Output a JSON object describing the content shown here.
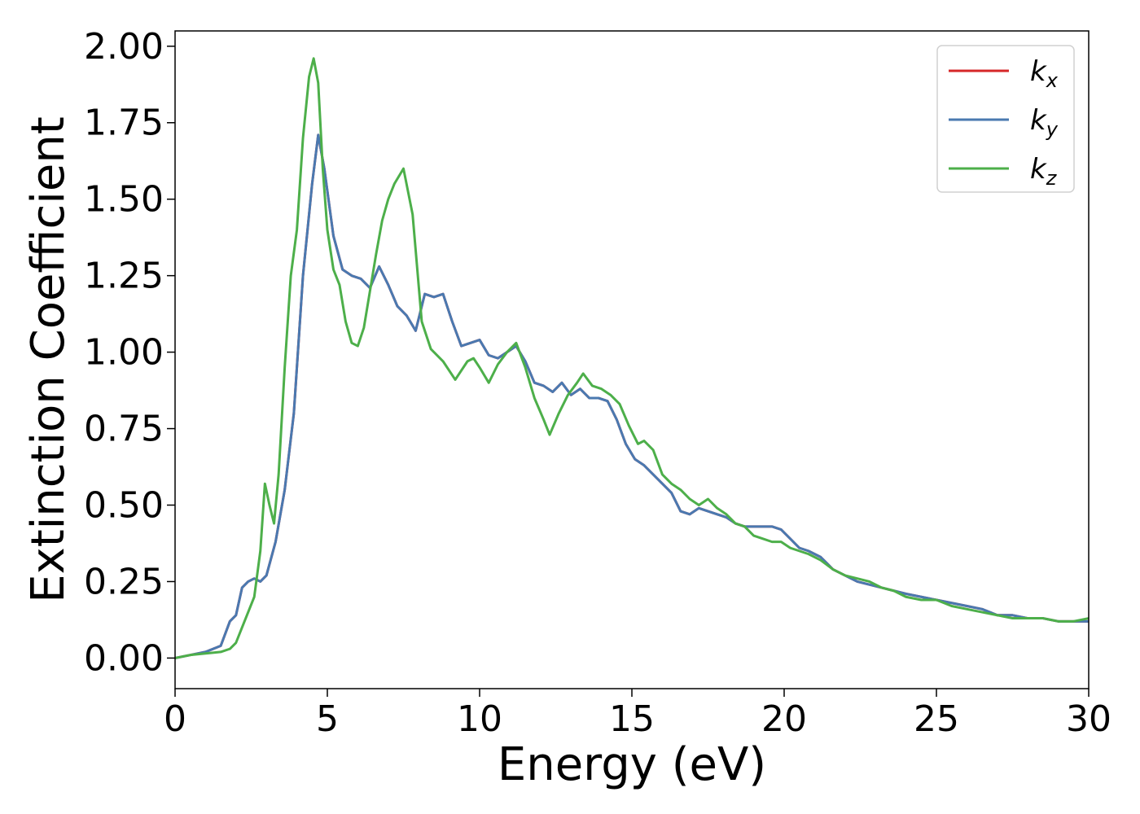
{
  "chart_data": {
    "type": "line",
    "xlabel": "Energy (eV)",
    "ylabel": "Extinction Coefficient",
    "xlim": [
      0,
      30
    ],
    "ylim": [
      -0.1,
      2.05
    ],
    "xticks": [
      0,
      5,
      10,
      15,
      20,
      25,
      30
    ],
    "yticks": [
      0.0,
      0.25,
      0.5,
      0.75,
      1.0,
      1.25,
      1.5,
      1.75,
      2.0
    ],
    "xtick_labels": [
      "0",
      "5",
      "10",
      "15",
      "20",
      "25",
      "30"
    ],
    "ytick_labels": [
      "0.00",
      "0.25",
      "0.50",
      "0.75",
      "1.00",
      "1.25",
      "1.50",
      "1.75",
      "2.00"
    ],
    "grid": false,
    "legend_position": "top-right",
    "series": [
      {
        "name": "k_x",
        "label_base": "k",
        "label_sub": "x",
        "color": "#d62728",
        "x": [
          0,
          0.5,
          1.0,
          1.5,
          1.8,
          2.0,
          2.2,
          2.4,
          2.6,
          2.8,
          3.0,
          3.3,
          3.6,
          3.9,
          4.2,
          4.5,
          4.7,
          4.9,
          5.2,
          5.5,
          5.8,
          6.1,
          6.4,
          6.7,
          7.0,
          7.3,
          7.6,
          7.9,
          8.2,
          8.5,
          8.8,
          9.1,
          9.4,
          9.7,
          10.0,
          10.3,
          10.6,
          10.9,
          11.2,
          11.5,
          11.8,
          12.1,
          12.4,
          12.7,
          13.0,
          13.3,
          13.6,
          13.9,
          14.2,
          14.5,
          14.8,
          15.1,
          15.4,
          15.7,
          16.0,
          16.3,
          16.6,
          16.9,
          17.2,
          17.5,
          17.8,
          18.1,
          18.4,
          18.7,
          19.0,
          19.3,
          19.6,
          19.9,
          20.2,
          20.5,
          20.8,
          21.2,
          21.6,
          22.0,
          22.4,
          22.8,
          23.2,
          23.6,
          24.0,
          24.5,
          25.0,
          25.5,
          26.0,
          26.5,
          27.0,
          27.5,
          28.0,
          28.5,
          29.0,
          29.5,
          30.0
        ],
        "y": [
          0.0,
          0.01,
          0.02,
          0.04,
          0.12,
          0.14,
          0.23,
          0.25,
          0.26,
          0.25,
          0.27,
          0.38,
          0.55,
          0.8,
          1.25,
          1.55,
          1.71,
          1.6,
          1.38,
          1.27,
          1.25,
          1.24,
          1.21,
          1.28,
          1.22,
          1.15,
          1.12,
          1.07,
          1.19,
          1.18,
          1.19,
          1.1,
          1.02,
          1.03,
          1.04,
          0.99,
          0.98,
          1.0,
          1.02,
          0.97,
          0.9,
          0.89,
          0.87,
          0.9,
          0.86,
          0.88,
          0.85,
          0.85,
          0.84,
          0.78,
          0.7,
          0.65,
          0.63,
          0.6,
          0.57,
          0.54,
          0.48,
          0.47,
          0.49,
          0.48,
          0.47,
          0.46,
          0.44,
          0.43,
          0.43,
          0.43,
          0.43,
          0.42,
          0.39,
          0.36,
          0.35,
          0.33,
          0.29,
          0.27,
          0.25,
          0.24,
          0.23,
          0.22,
          0.21,
          0.2,
          0.19,
          0.18,
          0.17,
          0.16,
          0.14,
          0.14,
          0.13,
          0.13,
          0.12,
          0.12,
          0.12
        ]
      },
      {
        "name": "k_y",
        "label_base": "k",
        "label_sub": "y",
        "color": "#4a79b0",
        "x": [
          0,
          0.5,
          1.0,
          1.5,
          1.8,
          2.0,
          2.2,
          2.4,
          2.6,
          2.8,
          3.0,
          3.3,
          3.6,
          3.9,
          4.2,
          4.5,
          4.7,
          4.9,
          5.2,
          5.5,
          5.8,
          6.1,
          6.4,
          6.7,
          7.0,
          7.3,
          7.6,
          7.9,
          8.2,
          8.5,
          8.8,
          9.1,
          9.4,
          9.7,
          10.0,
          10.3,
          10.6,
          10.9,
          11.2,
          11.5,
          11.8,
          12.1,
          12.4,
          12.7,
          13.0,
          13.3,
          13.6,
          13.9,
          14.2,
          14.5,
          14.8,
          15.1,
          15.4,
          15.7,
          16.0,
          16.3,
          16.6,
          16.9,
          17.2,
          17.5,
          17.8,
          18.1,
          18.4,
          18.7,
          19.0,
          19.3,
          19.6,
          19.9,
          20.2,
          20.5,
          20.8,
          21.2,
          21.6,
          22.0,
          22.4,
          22.8,
          23.2,
          23.6,
          24.0,
          24.5,
          25.0,
          25.5,
          26.0,
          26.5,
          27.0,
          27.5,
          28.0,
          28.5,
          29.0,
          29.5,
          30.0
        ],
        "y": [
          0.0,
          0.01,
          0.02,
          0.04,
          0.12,
          0.14,
          0.23,
          0.25,
          0.26,
          0.25,
          0.27,
          0.38,
          0.55,
          0.8,
          1.25,
          1.55,
          1.71,
          1.6,
          1.38,
          1.27,
          1.25,
          1.24,
          1.21,
          1.28,
          1.22,
          1.15,
          1.12,
          1.07,
          1.19,
          1.18,
          1.19,
          1.1,
          1.02,
          1.03,
          1.04,
          0.99,
          0.98,
          1.0,
          1.02,
          0.97,
          0.9,
          0.89,
          0.87,
          0.9,
          0.86,
          0.88,
          0.85,
          0.85,
          0.84,
          0.78,
          0.7,
          0.65,
          0.63,
          0.6,
          0.57,
          0.54,
          0.48,
          0.47,
          0.49,
          0.48,
          0.47,
          0.46,
          0.44,
          0.43,
          0.43,
          0.43,
          0.43,
          0.42,
          0.39,
          0.36,
          0.35,
          0.33,
          0.29,
          0.27,
          0.25,
          0.24,
          0.23,
          0.22,
          0.21,
          0.2,
          0.19,
          0.18,
          0.17,
          0.16,
          0.14,
          0.14,
          0.13,
          0.13,
          0.12,
          0.12,
          0.12
        ]
      },
      {
        "name": "k_z",
        "label_base": "k",
        "label_sub": "z",
        "color": "#4daf4a",
        "x": [
          0,
          0.5,
          1.0,
          1.5,
          1.8,
          2.0,
          2.2,
          2.4,
          2.6,
          2.8,
          2.95,
          3.1,
          3.25,
          3.4,
          3.6,
          3.8,
          4.0,
          4.2,
          4.4,
          4.55,
          4.7,
          4.85,
          5.0,
          5.2,
          5.4,
          5.6,
          5.8,
          6.0,
          6.2,
          6.4,
          6.6,
          6.8,
          7.0,
          7.2,
          7.5,
          7.8,
          8.1,
          8.4,
          8.8,
          9.2,
          9.6,
          9.8,
          10.0,
          10.3,
          10.6,
          10.9,
          11.2,
          11.5,
          11.8,
          12.1,
          12.3,
          12.6,
          12.9,
          13.2,
          13.4,
          13.7,
          14.0,
          14.3,
          14.6,
          14.9,
          15.2,
          15.4,
          15.7,
          16.0,
          16.3,
          16.6,
          16.9,
          17.2,
          17.5,
          17.8,
          18.1,
          18.4,
          18.7,
          19.0,
          19.3,
          19.6,
          19.9,
          20.2,
          20.5,
          20.8,
          21.2,
          21.6,
          22.0,
          22.4,
          22.8,
          23.2,
          23.6,
          24.0,
          24.5,
          25.0,
          25.5,
          26.0,
          26.5,
          27.0,
          27.5,
          28.0,
          28.5,
          29.0,
          29.5,
          30.0
        ],
        "y": [
          0.0,
          0.01,
          0.015,
          0.02,
          0.03,
          0.05,
          0.1,
          0.15,
          0.2,
          0.35,
          0.57,
          0.5,
          0.44,
          0.6,
          0.95,
          1.25,
          1.4,
          1.7,
          1.9,
          1.96,
          1.88,
          1.6,
          1.4,
          1.27,
          1.22,
          1.1,
          1.03,
          1.02,
          1.08,
          1.2,
          1.32,
          1.43,
          1.5,
          1.55,
          1.6,
          1.45,
          1.1,
          1.01,
          0.97,
          0.91,
          0.97,
          0.98,
          0.95,
          0.9,
          0.96,
          1.0,
          1.03,
          0.95,
          0.85,
          0.78,
          0.73,
          0.8,
          0.86,
          0.9,
          0.93,
          0.89,
          0.88,
          0.86,
          0.83,
          0.76,
          0.7,
          0.71,
          0.68,
          0.6,
          0.57,
          0.55,
          0.52,
          0.5,
          0.52,
          0.49,
          0.47,
          0.44,
          0.43,
          0.4,
          0.39,
          0.38,
          0.38,
          0.36,
          0.35,
          0.34,
          0.32,
          0.29,
          0.27,
          0.26,
          0.25,
          0.23,
          0.22,
          0.2,
          0.19,
          0.19,
          0.17,
          0.16,
          0.15,
          0.14,
          0.13,
          0.13,
          0.13,
          0.12,
          0.12,
          0.13
        ]
      }
    ]
  }
}
